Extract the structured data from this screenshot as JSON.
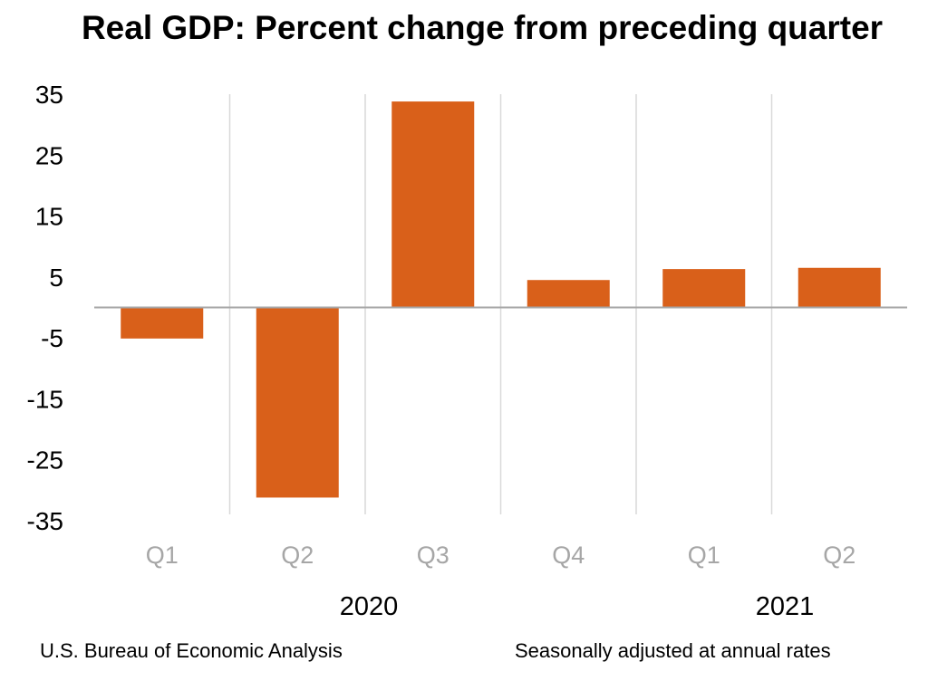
{
  "chart_data": {
    "type": "bar",
    "title": "Real GDP:  Percent change from preceding quarter",
    "categories": [
      "Q1",
      "Q2",
      "Q3",
      "Q4",
      "Q1",
      "Q2"
    ],
    "groups": [
      {
        "label": "2020",
        "categories": [
          "Q1",
          "Q2",
          "Q3",
          "Q4"
        ]
      },
      {
        "label": "2021",
        "categories": [
          "Q1",
          "Q2"
        ]
      }
    ],
    "series": [
      {
        "name": "Real GDP",
        "values": [
          -5.1,
          -31.2,
          33.8,
          4.5,
          6.3,
          6.5
        ]
      }
    ],
    "yticks": [
      35,
      25,
      15,
      5,
      -5,
      -15,
      -25,
      -35
    ],
    "ylim": [
      -35,
      35
    ],
    "xlabel": "",
    "ylabel": "",
    "grid": false,
    "legend": "none",
    "bar_color": "#d9601a",
    "separator_color": "#d9d9d9",
    "baseline_color": "#a6a6a6",
    "tick_label_color": "#a6a6a6"
  },
  "footer": {
    "source": "U.S. Bureau of Economic Analysis",
    "note": "Seasonally adjusted at annual rates"
  }
}
